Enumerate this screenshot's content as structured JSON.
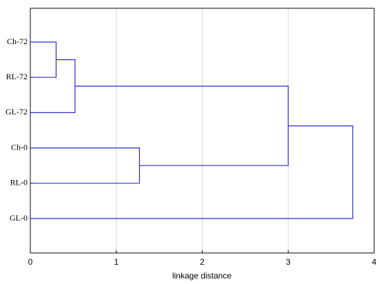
{
  "chart_data": {
    "type": "dendrogram",
    "leaves": [
      "Ch-72",
      "RL-72",
      "GL-72",
      "Ch-0",
      "RL-0",
      "GL-0"
    ],
    "merges": [
      {
        "left": 0,
        "right": 1,
        "height": 0.3
      },
      {
        "left": 6,
        "right": 2,
        "height": 0.52
      },
      {
        "left": 3,
        "right": 4,
        "height": 1.27
      },
      {
        "left": 7,
        "right": 8,
        "height": 3.0
      },
      {
        "left": 9,
        "right": 5,
        "height": 3.75
      }
    ],
    "color": "#2b2bd0",
    "xlabel": "linkage distance",
    "xlim": [
      0,
      4
    ],
    "xticks": [
      0,
      1,
      2,
      3,
      4
    ],
    "grid": true
  }
}
